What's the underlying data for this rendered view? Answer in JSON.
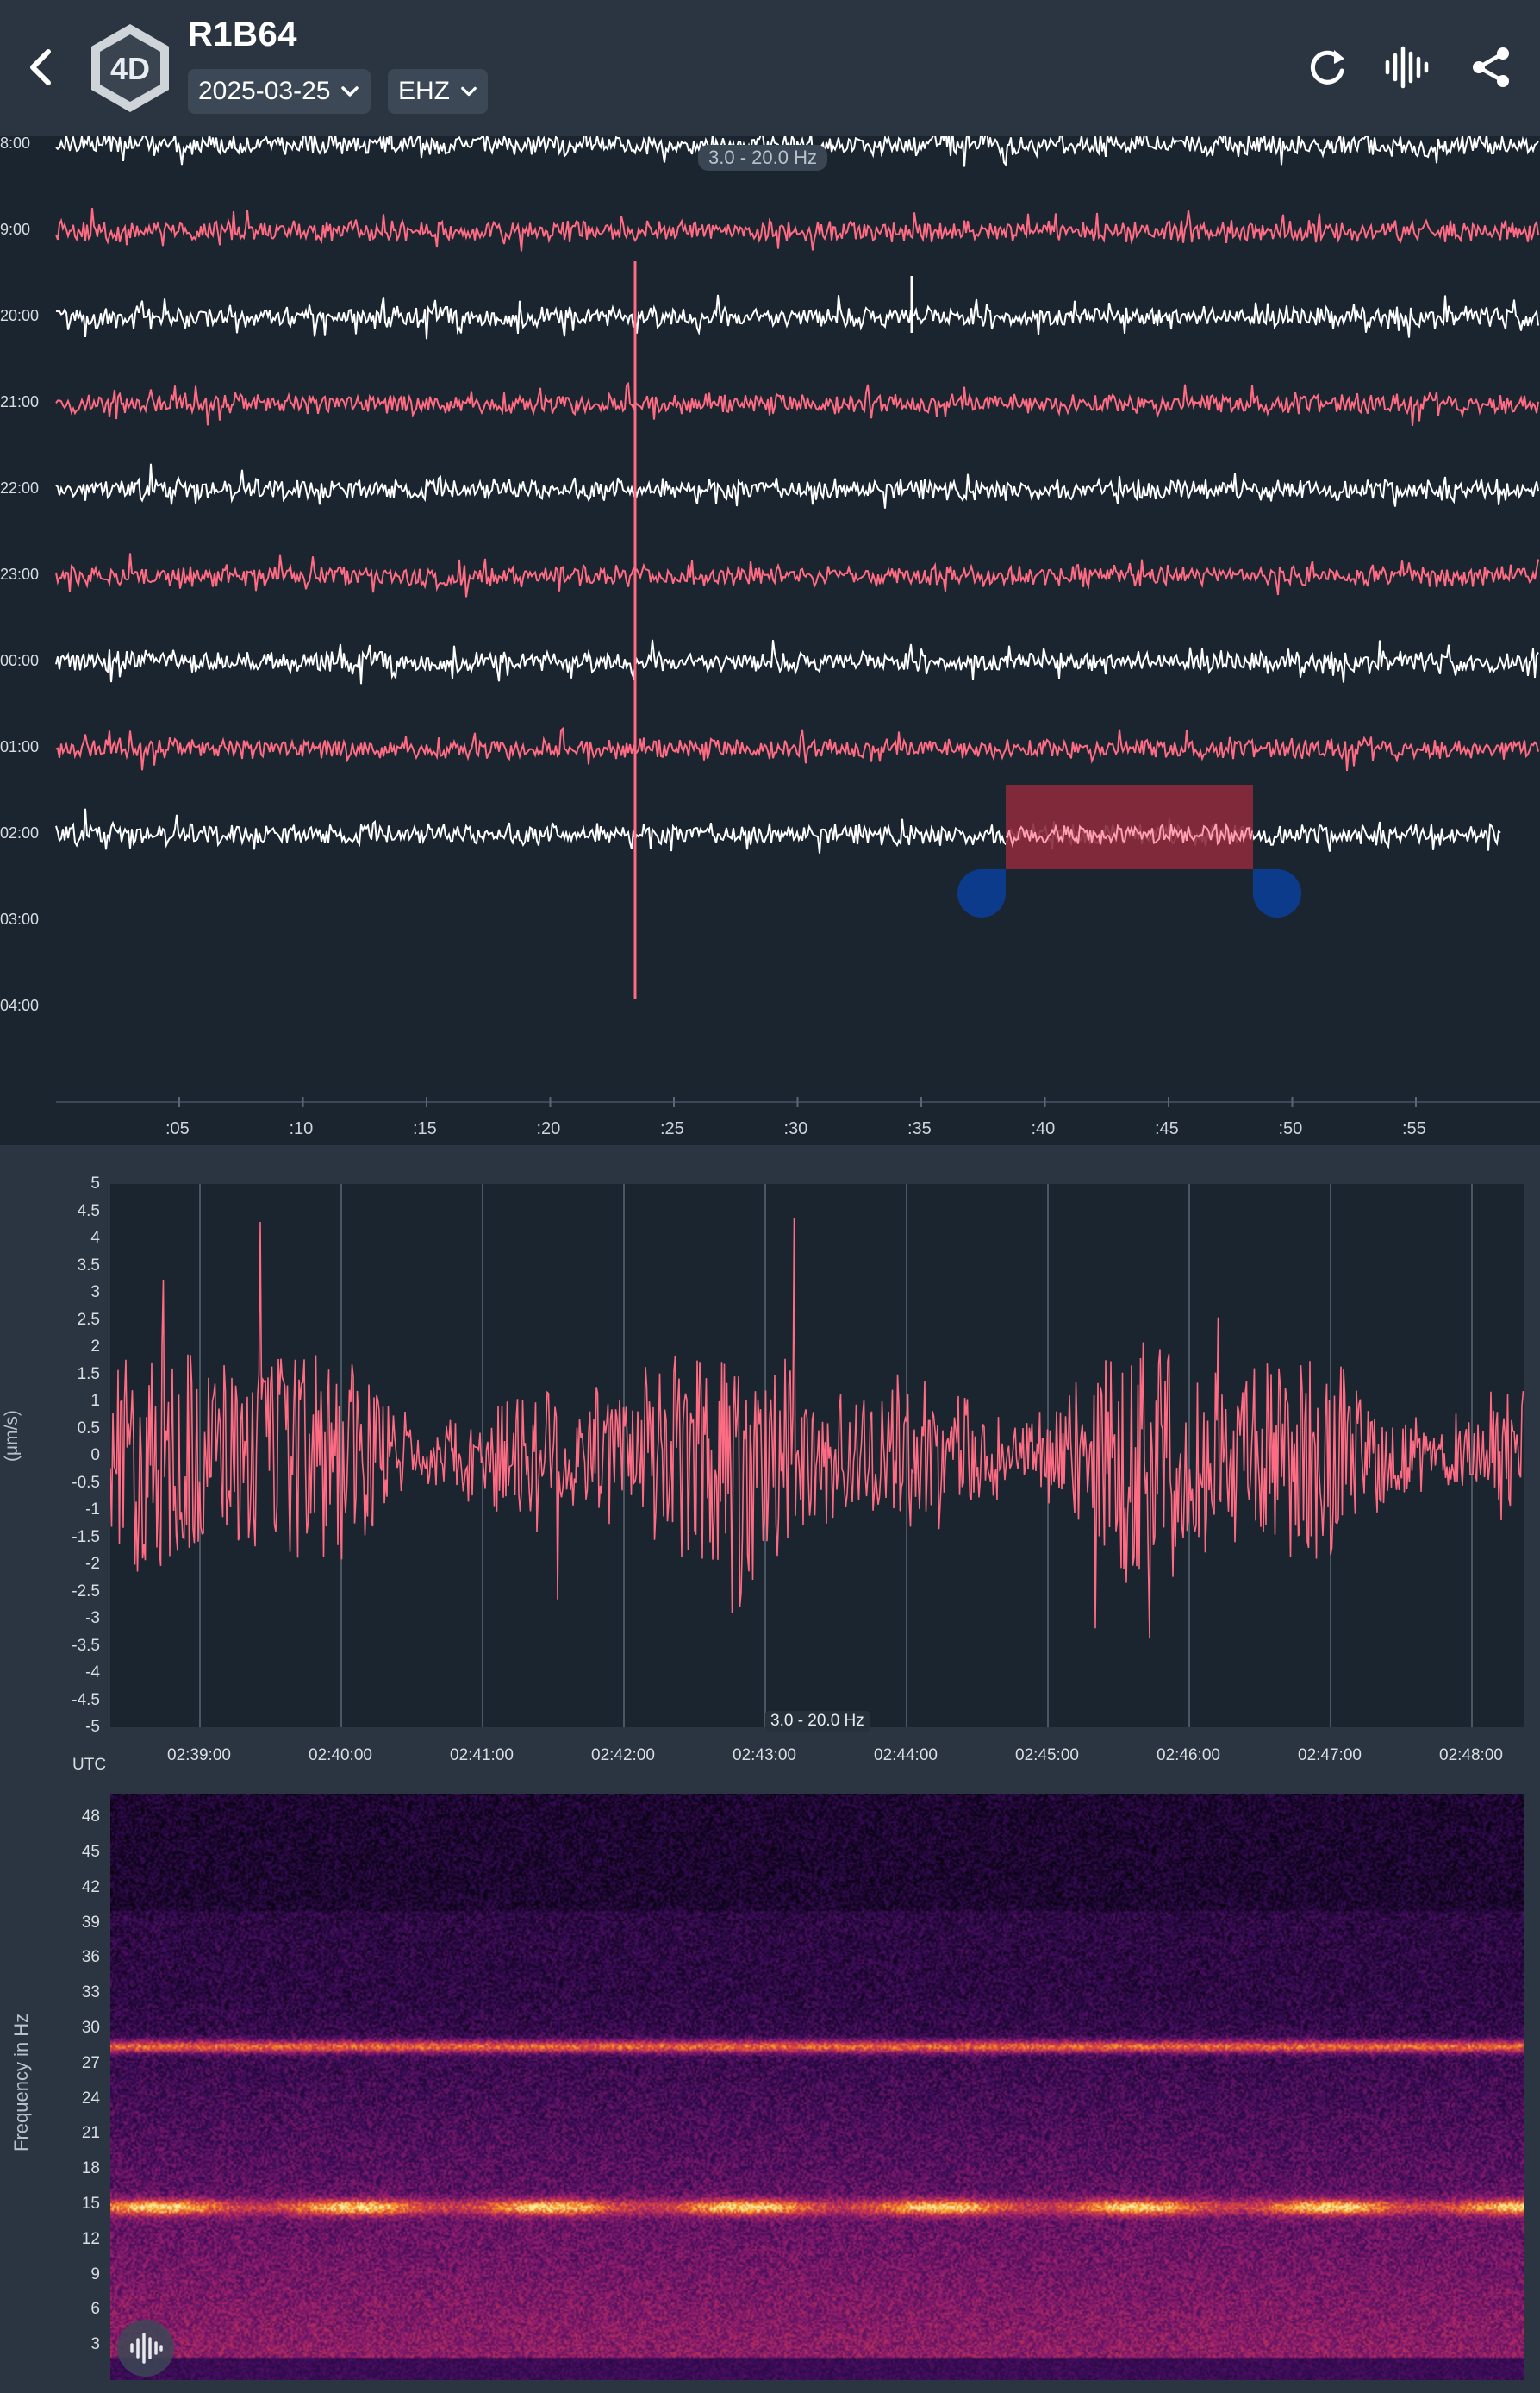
{
  "header": {
    "logo_text": "4D",
    "station": "R1B64",
    "date": "2025-03-25",
    "channel": "EHZ",
    "icons": [
      "back-icon",
      "refresh-icon",
      "waveform-icon",
      "share-icon"
    ]
  },
  "helicorder": {
    "filter": "3.0 - 20.0 Hz",
    "hour_labels": [
      "8:00",
      "9:00",
      "20:00",
      "21:00",
      "22:00",
      "23:00",
      "00:00",
      "01:00",
      "02:00",
      "03:00",
      "04:00"
    ],
    "minute_ticks": [
      ":05",
      ":10",
      ":15",
      ":20",
      ":25",
      ":30",
      ":35",
      ":40",
      ":45",
      ":50",
      ":55"
    ],
    "colors": {
      "white_trace": "#ffffff",
      "red_trace": "#ff6b82",
      "selection": "#8b2a3d",
      "handle": "#0d3b8c"
    }
  },
  "waveform": {
    "filter": "3.0 - 20.0 Hz",
    "y_label": "(μm/s)",
    "y_ticks": [
      "5",
      "4.5",
      "4",
      "3.5",
      "3",
      "2.5",
      "2",
      "1.5",
      "1",
      "0.5",
      "0",
      "-0.5",
      "-1",
      "-1.5",
      "-2",
      "-2.5",
      "-3",
      "-3.5",
      "-4",
      "-4.5",
      "-5"
    ],
    "x_ticks": [
      "02:39:00",
      "02:40:00",
      "02:41:00",
      "02:42:00",
      "02:43:00",
      "02:44:00",
      "02:45:00",
      "02:46:00",
      "02:47:00",
      "02:48:00"
    ],
    "utc_label": "UTC",
    "trace_color": "#ff6b82"
  },
  "spectrogram": {
    "y_label": "Frequency in Hz",
    "y_ticks": [
      "48",
      "45",
      "42",
      "39",
      "36",
      "33",
      "30",
      "27",
      "24",
      "21",
      "18",
      "15",
      "12",
      "9",
      "6",
      "3"
    ]
  }
}
